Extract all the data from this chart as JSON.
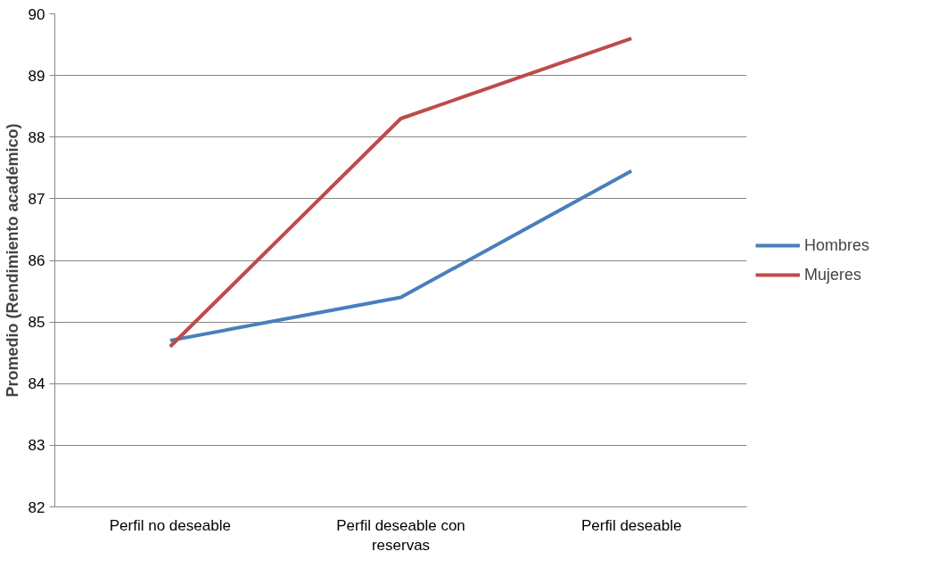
{
  "chart_data": {
    "type": "line",
    "ylabel": "Promedio (Rendimiento académico)",
    "categories": [
      "Perfil no deseable",
      "Perfil deseable con reservas",
      "Perfil deseable"
    ],
    "series": [
      {
        "name": "Hombres",
        "color": "#4a7ebb",
        "values": [
          84.7,
          85.4,
          87.45
        ]
      },
      {
        "name": "Mujeres",
        "color": "#be4b48",
        "values": [
          84.6,
          88.3,
          89.6
        ]
      }
    ],
    "ylim": [
      82,
      90
    ],
    "yticks": [
      82,
      83,
      84,
      85,
      86,
      87,
      88,
      89,
      90
    ],
    "grid": "y",
    "legend": "right",
    "marker": "none",
    "line_style": "solid"
  }
}
